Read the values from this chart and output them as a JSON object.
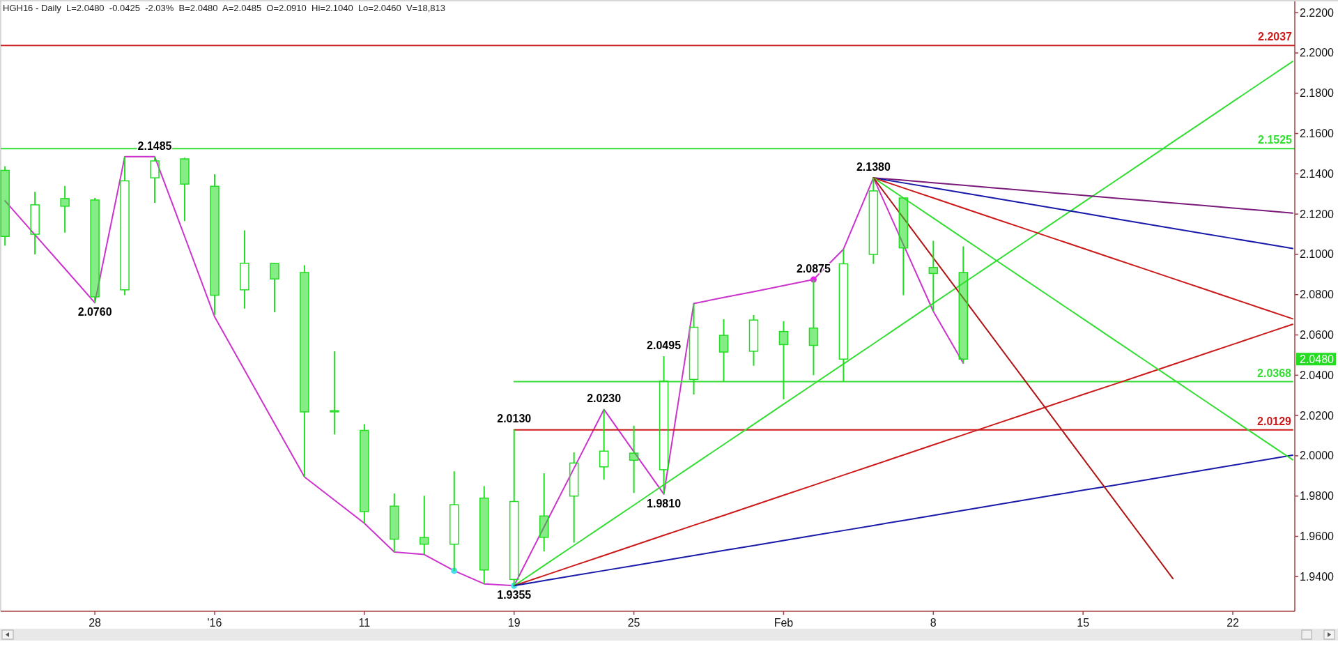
{
  "chart_data": {
    "type": "candlestick",
    "title": "HGH16 - Daily  L=2.0480  -0.0425  -2.03%  B=2.0480  A=2.0485  O=2.0910  Hi=2.1040  Lo=2.0460  V=18,813",
    "categories": [
      null,
      null,
      null,
      "28",
      null,
      null,
      null,
      "'16",
      null,
      null,
      null,
      null,
      "11",
      null,
      null,
      null,
      null,
      "19",
      null,
      null,
      null,
      "25",
      null,
      null,
      null,
      null,
      "Feb",
      null,
      null,
      null,
      null,
      "8",
      null,
      null,
      null,
      null,
      "15",
      null,
      null,
      null,
      null,
      "22",
      null,
      null
    ],
    "ohlc": [
      [
        2.1417,
        2.1438,
        2.1043,
        2.1089
      ],
      [
        2.11,
        2.131,
        2.1,
        2.1246
      ],
      [
        2.1277,
        2.134,
        2.1108,
        2.1239
      ],
      [
        2.127,
        2.128,
        2.076,
        2.0789
      ],
      [
        2.0824,
        2.1485,
        2.0797,
        2.1365
      ],
      [
        2.138,
        2.1485,
        2.1256,
        2.1464
      ],
      [
        2.1474,
        2.148,
        2.1165,
        2.1349
      ],
      [
        2.1338,
        2.1398,
        2.0699,
        2.0797
      ],
      [
        2.0824,
        2.1119,
        2.0731,
        2.0956
      ],
      [
        2.0955,
        2.0958,
        2.0713,
        2.0878
      ],
      [
        2.091,
        2.0946,
        1.9895,
        2.0218
      ],
      [
        2.0224,
        2.0519,
        2.0106,
        2.0218
      ],
      [
        2.0126,
        2.0157,
        1.9665,
        1.9723
      ],
      [
        1.975,
        1.9813,
        1.9522,
        1.9586
      ],
      [
        1.9594,
        1.9802,
        1.951,
        1.9561
      ],
      [
        1.9561,
        1.9923,
        1.9429,
        1.9757
      ],
      [
        1.979,
        1.9849,
        1.9364,
        1.9433
      ],
      [
        1.9386,
        2.013,
        1.9355,
        1.9773
      ],
      [
        1.9701,
        1.9913,
        1.9526,
        1.9595
      ],
      [
        1.98,
        2.0017,
        1.9569,
        1.9964
      ],
      [
        1.9945,
        2.023,
        1.9881,
        2.0023
      ],
      [
        2.0013,
        2.0149,
        1.9815,
        1.9978
      ],
      [
        1.9931,
        2.0495,
        1.981,
        2.0371
      ],
      [
        2.0379,
        2.0756,
        2.0304,
        2.0638
      ],
      [
        2.0598,
        2.0678,
        2.0369,
        2.0515
      ],
      [
        2.0519,
        2.0699,
        2.0447,
        2.0674
      ],
      [
        2.0617,
        2.0668,
        2.028,
        2.0552
      ],
      [
        2.0634,
        2.0875,
        2.04,
        2.0548
      ],
      [
        2.048,
        2.1026,
        2.0369,
        2.0953
      ],
      [
        2.1,
        2.138,
        2.0953,
        2.1315
      ],
      [
        2.128,
        2.128,
        2.0797,
        2.1032
      ],
      [
        2.0935,
        2.1067,
        2.0717,
        2.0905
      ],
      [
        2.091,
        2.104,
        2.046,
        2.048
      ],
      null,
      null,
      null,
      null,
      null,
      null,
      null,
      null,
      null,
      null,
      null
    ],
    "color": "#22dd22",
    "ylim": [
      1.9228,
      2.2256
    ],
    "yticks": [
      {
        "value": 1.94,
        "label": "1.9400"
      },
      {
        "value": 1.96,
        "label": "1.9600"
      },
      {
        "value": 1.98,
        "label": "1.9800"
      },
      {
        "value": 2.0,
        "label": "2.0000"
      },
      {
        "value": 2.02,
        "label": "2.0200"
      },
      {
        "value": 2.04,
        "label": "2.0400"
      },
      {
        "value": 2.06,
        "label": "2.0600"
      },
      {
        "value": 2.08,
        "label": "2.0800"
      },
      {
        "value": 2.1,
        "label": "2.1000"
      },
      {
        "value": 2.12,
        "label": "2.1200"
      },
      {
        "value": 2.14,
        "label": "2.1400"
      },
      {
        "value": 2.16,
        "label": "2.1600"
      },
      {
        "value": 2.18,
        "label": "2.1800"
      },
      {
        "value": 2.2,
        "label": "2.2000"
      },
      {
        "value": 2.22,
        "label": "2.2200"
      }
    ],
    "series": [
      {
        "type": "line",
        "color": "#cc33cc",
        "values": [
          2.1266,
          2.1097,
          2.0929,
          2.076,
          2.1485,
          2.1485,
          2.1088,
          2.069,
          2.0425,
          2.016,
          1.9895,
          1.978,
          1.9665,
          1.9522,
          1.951,
          1.9429,
          1.9364,
          1.9355,
          1.9647,
          1.9938,
          2.023,
          2.002,
          1.981,
          2.0756,
          2.0786,
          2.0815,
          2.0845,
          2.0875,
          2.1026,
          2.138,
          2.1049,
          2.0717,
          2.046,
          null,
          null,
          null,
          null,
          null,
          null,
          null,
          null,
          null,
          null,
          null
        ]
      },
      {
        "type": "scatter",
        "color": "#ee22ee",
        "marker": "circle",
        "values": [
          null,
          null,
          null,
          null,
          null,
          null,
          null,
          null,
          null,
          null,
          null,
          null,
          null,
          null,
          null,
          null,
          null,
          null,
          null,
          null,
          null,
          null,
          null,
          null,
          null,
          null,
          null,
          2.0875,
          null,
          null,
          null,
          null,
          null,
          null,
          null,
          null,
          null,
          null,
          null,
          null,
          null,
          null,
          null,
          null
        ]
      },
      {
        "type": "scatter",
        "color": "#44ddee",
        "marker": "circle",
        "values": [
          null,
          null,
          null,
          null,
          null,
          null,
          null,
          null,
          null,
          null,
          null,
          null,
          null,
          null,
          null,
          1.9429,
          null,
          1.9355,
          null,
          null,
          null,
          null,
          null,
          null,
          null,
          null,
          null,
          null,
          null,
          null,
          null,
          null,
          null,
          null,
          null,
          null,
          null,
          null,
          null,
          null,
          null,
          null,
          null,
          null
        ]
      },
      {
        "type": "line",
        "color": "#33dd33",
        "values": [
          null,
          null,
          null,
          null,
          null,
          null,
          null,
          null,
          null,
          null,
          null,
          null,
          null,
          null,
          null,
          null,
          null,
          2.0368,
          2.0368,
          2.0368,
          2.0368,
          2.0368,
          2.0368,
          2.0368,
          2.0368,
          2.0368,
          2.0368,
          2.0368,
          2.0368,
          2.0368,
          2.0368,
          2.0368,
          2.0368,
          2.0368,
          2.0368,
          2.0368,
          2.0368,
          2.0368,
          2.0368,
          2.0368,
          2.0368,
          2.0368,
          2.0368,
          2.0368
        ],
        "value_labels": [
          null,
          null,
          null,
          null,
          null,
          null,
          null,
          null,
          null,
          null,
          null,
          null,
          null,
          null,
          null,
          null,
          null,
          null,
          null,
          null,
          null,
          null,
          null,
          null,
          null,
          null,
          null,
          null,
          null,
          null,
          null,
          null,
          null,
          null,
          null,
          null,
          null,
          null,
          null,
          null,
          null,
          null,
          null,
          "2.0368"
        ]
      },
      {
        "type": "line",
        "color": "#cc1a1a",
        "values": [
          null,
          null,
          null,
          null,
          null,
          null,
          null,
          null,
          null,
          null,
          null,
          null,
          null,
          null,
          null,
          null,
          null,
          2.0129,
          2.0129,
          2.0129,
          2.0129,
          2.0129,
          2.0129,
          2.0129,
          2.0129,
          2.0129,
          2.0129,
          2.0129,
          2.0129,
          2.0129,
          2.0129,
          2.0129,
          2.0129,
          2.0129,
          2.0129,
          2.0129,
          2.0129,
          2.0129,
          2.0129,
          2.0129,
          2.0129,
          2.0129,
          2.0129,
          2.0129
        ],
        "value_labels": [
          null,
          null,
          null,
          null,
          null,
          null,
          null,
          null,
          null,
          null,
          null,
          null,
          null,
          null,
          null,
          null,
          null,
          null,
          null,
          null,
          null,
          null,
          null,
          null,
          null,
          null,
          null,
          null,
          null,
          null,
          null,
          null,
          null,
          null,
          null,
          null,
          null,
          null,
          null,
          null,
          null,
          null,
          null,
          "2.0129"
        ]
      },
      {
        "type": "line",
        "color": "#33dd33",
        "values": [
          null,
          null,
          null,
          null,
          null,
          null,
          null,
          null,
          null,
          null,
          null,
          null,
          null,
          null,
          null,
          null,
          null,
          1.9355,
          1.9455,
          1.9555,
          1.9655,
          1.9755,
          1.9856,
          1.9956,
          2.0056,
          2.0156,
          2.0256,
          2.0356,
          2.0456,
          2.0556,
          2.0657,
          2.0757,
          2.0857,
          2.0957,
          2.1057,
          2.1157,
          2.1257,
          2.1357,
          2.1457,
          2.1558,
          2.1658,
          2.1758,
          2.1858,
          2.1958
        ]
      },
      {
        "type": "line",
        "color": "#cc1a1a",
        "values": [
          null,
          null,
          null,
          null,
          null,
          null,
          null,
          null,
          null,
          null,
          null,
          null,
          null,
          null,
          null,
          null,
          null,
          1.9355,
          1.9405,
          1.9455,
          1.9505,
          1.9555,
          1.9605,
          1.9655,
          1.9704,
          1.9754,
          1.9804,
          1.9854,
          1.9904,
          1.9954,
          2.0004,
          2.0054,
          2.0104,
          2.0154,
          2.0204,
          2.0254,
          2.0304,
          2.0353,
          2.0403,
          2.0453,
          2.0503,
          2.0553,
          2.0603,
          2.0653
        ]
      },
      {
        "type": "line",
        "color": "#1a1aaa",
        "values": [
          null,
          null,
          null,
          null,
          null,
          null,
          null,
          null,
          null,
          null,
          null,
          null,
          null,
          null,
          null,
          null,
          null,
          1.9355,
          1.938,
          1.9405,
          1.943,
          1.9455,
          1.948,
          1.9505,
          1.953,
          1.9554,
          1.9579,
          1.9604,
          1.9629,
          1.9654,
          1.9679,
          1.9704,
          1.9729,
          1.9754,
          1.9779,
          1.9804,
          1.9829,
          1.9853,
          1.9878,
          1.9903,
          1.9928,
          1.9953,
          1.9978,
          2.0003
        ]
      },
      {
        "type": "line",
        "color": "#7a1a7a",
        "values": [
          null,
          null,
          null,
          null,
          null,
          null,
          null,
          null,
          null,
          null,
          null,
          null,
          null,
          null,
          null,
          null,
          null,
          null,
          null,
          null,
          null,
          null,
          null,
          null,
          null,
          null,
          null,
          null,
          null,
          2.138,
          2.1368,
          2.1355,
          2.1343,
          2.133,
          2.1318,
          2.1305,
          2.1293,
          2.128,
          2.1268,
          2.1255,
          2.1243,
          2.123,
          2.1218,
          2.1205
        ]
      },
      {
        "type": "line",
        "color": "#1a1aaa",
        "values": [
          null,
          null,
          null,
          null,
          null,
          null,
          null,
          null,
          null,
          null,
          null,
          null,
          null,
          null,
          null,
          null,
          null,
          null,
          null,
          null,
          null,
          null,
          null,
          null,
          null,
          null,
          null,
          null,
          null,
          2.138,
          2.1355,
          2.133,
          2.1305,
          2.128,
          2.1255,
          2.123,
          2.1205,
          2.1179,
          2.1154,
          2.1129,
          2.1104,
          2.1079,
          2.1054,
          2.1029
        ]
      },
      {
        "type": "line",
        "color": "#cc1a1a",
        "values": [
          null,
          null,
          null,
          null,
          null,
          null,
          null,
          null,
          null,
          null,
          null,
          null,
          null,
          null,
          null,
          null,
          null,
          null,
          null,
          null,
          null,
          null,
          null,
          null,
          null,
          null,
          null,
          null,
          null,
          2.138,
          2.133,
          2.128,
          2.123,
          2.118,
          2.113,
          2.108,
          2.103,
          2.098,
          2.093,
          2.088,
          2.083,
          2.078,
          2.073,
          2.068
        ]
      },
      {
        "type": "line",
        "color": "#33dd33",
        "values": [
          null,
          null,
          null,
          null,
          null,
          null,
          null,
          null,
          null,
          null,
          null,
          null,
          null,
          null,
          null,
          null,
          null,
          null,
          null,
          null,
          null,
          null,
          null,
          null,
          null,
          null,
          null,
          null,
          null,
          2.138,
          2.128,
          2.118,
          2.108,
          2.098,
          2.088,
          2.078,
          2.068,
          2.058,
          2.048,
          2.038,
          2.028,
          2.018,
          2.008,
          1.998
        ]
      },
      {
        "type": "line",
        "color": "#b01515",
        "values": [
          null,
          null,
          null,
          null,
          null,
          null,
          null,
          null,
          null,
          null,
          null,
          null,
          null,
          null,
          null,
          null,
          null,
          null,
          null,
          null,
          null,
          null,
          null,
          null,
          null,
          null,
          null,
          null,
          null,
          2.138,
          2.1181,
          2.0982,
          2.0783,
          2.0584,
          2.0385,
          2.0186,
          1.9987,
          1.9788,
          1.9589,
          1.939,
          null,
          null,
          null,
          null
        ]
      }
    ],
    "ref_lines": [
      {
        "axis": "y",
        "value": 2.2037,
        "label": "2.2037",
        "color": "#cc1a1a"
      },
      {
        "axis": "y",
        "value": 2.1525,
        "label": "2.1525",
        "color": "#33dd33"
      }
    ],
    "annotations": [
      {
        "text": "2.1485",
        "y": 2.1485
      },
      {
        "text": "2.0760",
        "x": "28",
        "y": 2.076
      },
      {
        "text": "1.9355",
        "x": "19",
        "y": 1.9355
      },
      {
        "text": "2.0130",
        "x": "19",
        "y": 2.013
      },
      {
        "text": "2.0230",
        "y": 2.023
      },
      {
        "text": "2.0495",
        "y": 2.0495
      },
      {
        "text": "1.9810",
        "y": 1.981
      },
      {
        "text": "2.0875",
        "y": 2.0875
      },
      {
        "text": "2.1380",
        "y": 2.138
      },
      "2.0480"
    ]
  }
}
